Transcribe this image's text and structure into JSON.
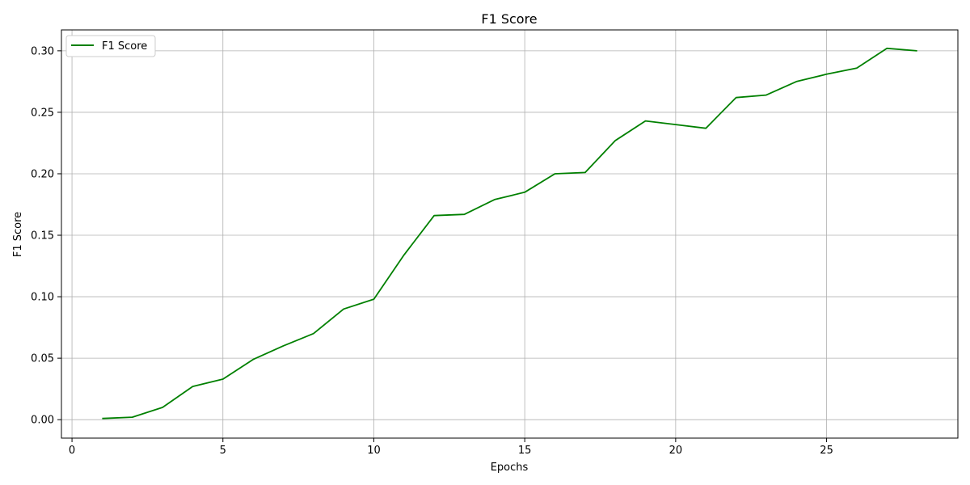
{
  "chart_data": {
    "type": "line",
    "title": "F1 Score",
    "xlabel": "Epochs",
    "ylabel": "F1 Score",
    "xlim": [
      -0.35,
      29.35
    ],
    "ylim": [
      -0.015,
      0.317
    ],
    "xticks": [
      0,
      5,
      10,
      15,
      20,
      25
    ],
    "xtick_labels": [
      "0",
      "5",
      "10",
      "15",
      "20",
      "25"
    ],
    "yticks": [
      0.0,
      0.05,
      0.1,
      0.15,
      0.2,
      0.25,
      0.3
    ],
    "ytick_labels": [
      "0.00",
      "0.05",
      "0.10",
      "0.15",
      "0.20",
      "0.25",
      "0.30"
    ],
    "grid": true,
    "legend_position": "top-left",
    "series": [
      {
        "name": "F1 Score",
        "color": "#008000",
        "x": [
          1,
          2,
          3,
          4,
          5,
          6,
          7,
          8,
          9,
          10,
          11,
          12,
          13,
          14,
          15,
          16,
          17,
          18,
          19,
          20,
          21,
          22,
          23,
          24,
          25,
          26,
          27,
          28
        ],
        "y": [
          0.001,
          0.002,
          0.01,
          0.027,
          0.033,
          0.049,
          0.06,
          0.07,
          0.09,
          0.098,
          0.134,
          0.166,
          0.167,
          0.179,
          0.185,
          0.2,
          0.201,
          0.227,
          0.243,
          0.24,
          0.237,
          0.262,
          0.264,
          0.275,
          0.281,
          0.286,
          0.302,
          0.3
        ]
      }
    ]
  }
}
